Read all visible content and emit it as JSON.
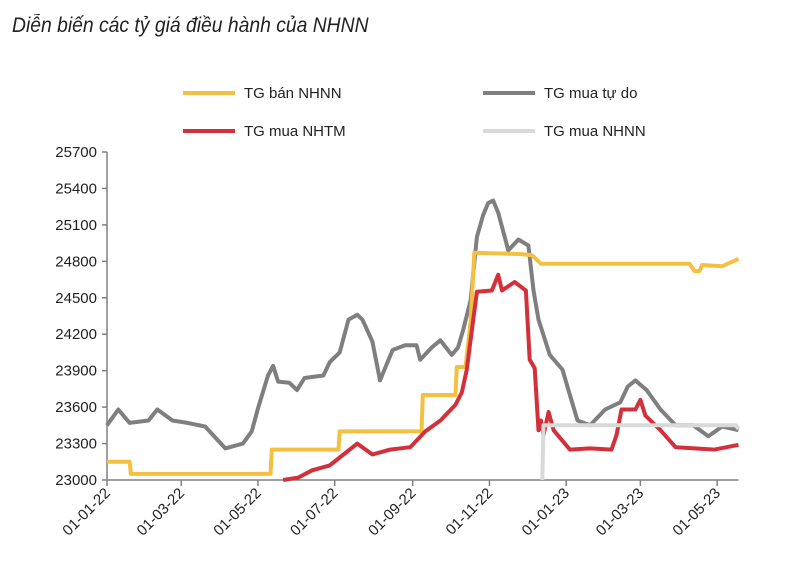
{
  "chart_data": {
    "type": "line",
    "title": "Diễn biến các tỷ giá điều hành của NHNN",
    "xlabel": "",
    "ylabel": "",
    "ylim": [
      23000,
      25700
    ],
    "yticks": [
      23000,
      23300,
      23600,
      23900,
      24200,
      24500,
      24800,
      25100,
      25400,
      25700
    ],
    "xticks": [
      "01-01-22",
      "01-03-22",
      "01-05-22",
      "01-07-22",
      "01-09-22",
      "01-11-22",
      "01-01-23",
      "01-03-23",
      "01-05-23"
    ],
    "xlim": [
      "2022-01-01",
      "2023-05-18"
    ],
    "grid": false,
    "legend_position": "top",
    "series": [
      {
        "name": "TG bán NHNN",
        "color": "#F4C040",
        "points": [
          [
            "2022-01-01",
            23150
          ],
          [
            "2022-01-19",
            23150
          ],
          [
            "2022-01-20",
            23050
          ],
          [
            "2022-05-11",
            23050
          ],
          [
            "2022-05-12",
            23250
          ],
          [
            "2022-07-04",
            23250
          ],
          [
            "2022-07-05",
            23400
          ],
          [
            "2022-09-08",
            23400
          ],
          [
            "2022-09-09",
            23700
          ],
          [
            "2022-10-05",
            23700
          ],
          [
            "2022-10-06",
            23930
          ],
          [
            "2022-10-13",
            23930
          ],
          [
            "2022-10-17",
            24300
          ],
          [
            "2022-10-20",
            24870
          ],
          [
            "2022-11-25",
            24860
          ],
          [
            "2022-12-05",
            24850
          ],
          [
            "2022-12-12",
            24780
          ],
          [
            "2023-04-09",
            24780
          ],
          [
            "2023-04-13",
            24720
          ],
          [
            "2023-04-17",
            24720
          ],
          [
            "2023-04-19",
            24770
          ],
          [
            "2023-05-05",
            24760
          ],
          [
            "2023-05-18",
            24820
          ]
        ]
      },
      {
        "name": "TG mua tự do",
        "color": "#7F7F7F",
        "points": [
          [
            "2022-01-01",
            23450
          ],
          [
            "2022-01-10",
            23580
          ],
          [
            "2022-01-19",
            23470
          ],
          [
            "2022-02-03",
            23490
          ],
          [
            "2022-02-10",
            23580
          ],
          [
            "2022-02-22",
            23490
          ],
          [
            "2022-03-06",
            23470
          ],
          [
            "2022-03-20",
            23440
          ],
          [
            "2022-04-05",
            23260
          ],
          [
            "2022-04-19",
            23300
          ],
          [
            "2022-04-26",
            23400
          ],
          [
            "2022-05-01",
            23590
          ],
          [
            "2022-05-09",
            23860
          ],
          [
            "2022-05-13",
            23940
          ],
          [
            "2022-05-17",
            23810
          ],
          [
            "2022-05-26",
            23800
          ],
          [
            "2022-06-01",
            23740
          ],
          [
            "2022-06-07",
            23840
          ],
          [
            "2022-06-22",
            23860
          ],
          [
            "2022-06-27",
            23970
          ],
          [
            "2022-07-05",
            24050
          ],
          [
            "2022-07-12",
            24320
          ],
          [
            "2022-07-19",
            24360
          ],
          [
            "2022-07-23",
            24320
          ],
          [
            "2022-07-31",
            24140
          ],
          [
            "2022-08-06",
            23820
          ],
          [
            "2022-08-16",
            24070
          ],
          [
            "2022-08-26",
            24110
          ],
          [
            "2022-09-04",
            24110
          ],
          [
            "2022-09-07",
            23990
          ],
          [
            "2022-09-16",
            24090
          ],
          [
            "2022-09-23",
            24150
          ],
          [
            "2022-10-02",
            24030
          ],
          [
            "2022-10-07",
            24090
          ],
          [
            "2022-10-11",
            24230
          ],
          [
            "2022-10-17",
            24480
          ],
          [
            "2022-10-22",
            25000
          ],
          [
            "2022-10-27",
            25180
          ],
          [
            "2022-10-31",
            25280
          ],
          [
            "2022-11-04",
            25300
          ],
          [
            "2022-11-08",
            25200
          ],
          [
            "2022-11-16",
            24890
          ],
          [
            "2022-11-24",
            24980
          ],
          [
            "2022-12-02",
            24930
          ],
          [
            "2022-12-06",
            24560
          ],
          [
            "2022-12-10",
            24320
          ],
          [
            "2022-12-19",
            24030
          ],
          [
            "2022-12-29",
            23910
          ],
          [
            "2023-01-04",
            23700
          ],
          [
            "2023-01-10",
            23490
          ],
          [
            "2023-01-20",
            23450
          ],
          [
            "2023-02-01",
            23580
          ],
          [
            "2023-02-13",
            23640
          ],
          [
            "2023-02-19",
            23770
          ],
          [
            "2023-02-25",
            23820
          ],
          [
            "2023-03-06",
            23740
          ],
          [
            "2023-03-17",
            23580
          ],
          [
            "2023-03-29",
            23450
          ],
          [
            "2023-04-12",
            23450
          ],
          [
            "2023-04-24",
            23360
          ],
          [
            "2023-05-05",
            23440
          ],
          [
            "2023-05-18",
            23410
          ]
        ]
      },
      {
        "name": "TG mua NHTM",
        "color": "#D2303A",
        "points": [
          [
            "2022-05-21",
            23000
          ],
          [
            "2022-06-02",
            23020
          ],
          [
            "2022-06-13",
            23080
          ],
          [
            "2022-06-27",
            23120
          ],
          [
            "2022-07-08",
            23210
          ],
          [
            "2022-07-19",
            23300
          ],
          [
            "2022-07-31",
            23210
          ],
          [
            "2022-08-14",
            23250
          ],
          [
            "2022-08-30",
            23270
          ],
          [
            "2022-09-11",
            23400
          ],
          [
            "2022-09-23",
            23490
          ],
          [
            "2022-10-05",
            23620
          ],
          [
            "2022-10-10",
            23720
          ],
          [
            "2022-10-14",
            23910
          ],
          [
            "2022-10-18",
            24230
          ],
          [
            "2022-10-22",
            24550
          ],
          [
            "2022-11-03",
            24560
          ],
          [
            "2022-11-08",
            24690
          ],
          [
            "2022-11-11",
            24560
          ],
          [
            "2022-11-21",
            24630
          ],
          [
            "2022-11-30",
            24560
          ],
          [
            "2022-12-03",
            23990
          ],
          [
            "2022-12-07",
            23920
          ],
          [
            "2022-12-10",
            23410
          ],
          [
            "2022-12-12",
            23490
          ],
          [
            "2022-12-14",
            23370
          ],
          [
            "2022-12-18",
            23560
          ],
          [
            "2022-12-22",
            23410
          ],
          [
            "2023-01-04",
            23250
          ],
          [
            "2023-01-20",
            23260
          ],
          [
            "2023-02-06",
            23250
          ],
          [
            "2023-02-10",
            23370
          ],
          [
            "2023-02-14",
            23580
          ],
          [
            "2023-02-25",
            23580
          ],
          [
            "2023-03-01",
            23660
          ],
          [
            "2023-03-05",
            23530
          ],
          [
            "2023-03-17",
            23410
          ],
          [
            "2023-03-29",
            23270
          ],
          [
            "2023-04-13",
            23260
          ],
          [
            "2023-04-29",
            23250
          ],
          [
            "2023-05-18",
            23290
          ]
        ]
      },
      {
        "name": "TG mua NHNN",
        "color": "#D9D9D9",
        "points": [
          [
            "2022-12-13",
            23000
          ],
          [
            "2022-12-14",
            23450
          ],
          [
            "2023-05-16",
            23450
          ],
          [
            "2023-05-18",
            23420
          ]
        ]
      }
    ]
  }
}
